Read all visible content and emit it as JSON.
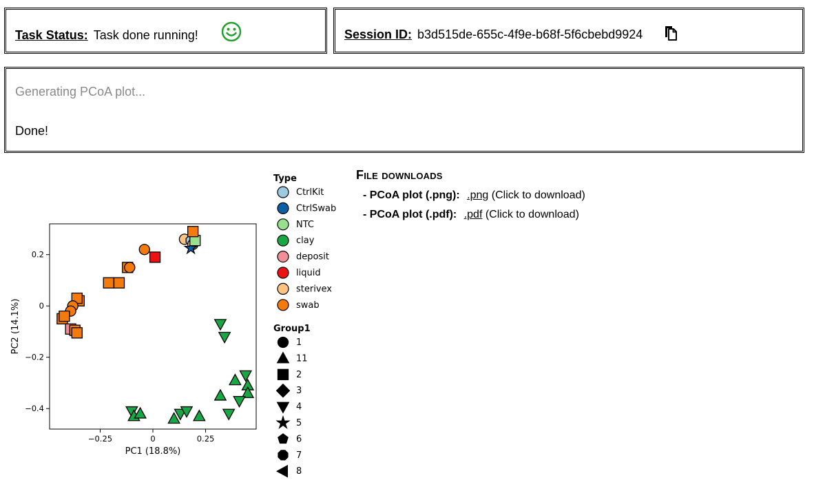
{
  "status": {
    "label": "Task Status:",
    "text": "Task done running!",
    "icon": "smiley-icon",
    "icon_color": "#22a22c"
  },
  "session": {
    "label": "Session ID:",
    "id": "b3d515de-655c-4f9e-b68f-5f6cbebd9924",
    "icon": "copy-icon"
  },
  "log": {
    "lines": [
      "Generating PCoA plot...",
      "Done!"
    ]
  },
  "downloads": {
    "title": "File downloads",
    "items": [
      {
        "label": "- PCoA plot (.png):",
        "link": ".png",
        "hint": "(Click to download)"
      },
      {
        "label": "- PCoA plot (.pdf):",
        "link": ".pdf",
        "hint": "(Click to download)"
      }
    ]
  },
  "chart_data": {
    "type": "scatter",
    "xlabel": "PC1 (18.8%)",
    "ylabel": "PC2 (14.1%)",
    "xlim": [
      -0.49,
      0.49
    ],
    "ylim": [
      -0.48,
      0.32
    ],
    "xticks": [
      -0.25,
      0,
      0.25
    ],
    "xtick_labels": [
      "−0.25",
      "0",
      "0.25"
    ],
    "yticks": [
      0.2,
      0,
      -0.2,
      -0.4
    ],
    "ytick_labels": [
      "0.2",
      "0",
      "−0.2",
      "−0.4"
    ],
    "grid": false,
    "legend_position": "right",
    "legend_type": {
      "title": "Type",
      "entries": [
        {
          "name": "CtrlKit",
          "color": "#9ecae1"
        },
        {
          "name": "CtrlSwab",
          "color": "#0b5fa5"
        },
        {
          "name": "NTC",
          "color": "#98e08e"
        },
        {
          "name": "clay",
          "color": "#17a845"
        },
        {
          "name": "deposit",
          "color": "#f08f98"
        },
        {
          "name": "liquid",
          "color": "#ee1111"
        },
        {
          "name": "sterivex",
          "color": "#fdc383"
        },
        {
          "name": "swab",
          "color": "#f57a0d"
        }
      ]
    },
    "legend_group": {
      "title": "Group1",
      "entries": [
        {
          "name": "1",
          "shape": "circle"
        },
        {
          "name": "11",
          "shape": "triangle-up"
        },
        {
          "name": "2",
          "shape": "square"
        },
        {
          "name": "3",
          "shape": "diamond"
        },
        {
          "name": "4",
          "shape": "triangle-down"
        },
        {
          "name": "5",
          "shape": "star"
        },
        {
          "name": "6",
          "shape": "pentagon"
        },
        {
          "name": "7",
          "shape": "octagon"
        },
        {
          "name": "8",
          "shape": "triangle-left"
        }
      ]
    },
    "points": [
      {
        "x": 0.15,
        "y": 0.26,
        "type": "sterivex",
        "shape": "circle"
      },
      {
        "x": 0.18,
        "y": 0.255,
        "type": "CtrlKit",
        "shape": "octagon"
      },
      {
        "x": 0.19,
        "y": 0.24,
        "type": "sterivex",
        "shape": "circle"
      },
      {
        "x": 0.18,
        "y": 0.225,
        "type": "CtrlSwab",
        "shape": "star"
      },
      {
        "x": 0.2,
        "y": 0.255,
        "type": "NTC",
        "shape": "square"
      },
      {
        "x": 0.19,
        "y": 0.29,
        "type": "swab",
        "shape": "square"
      },
      {
        "x": -0.04,
        "y": 0.22,
        "type": "swab",
        "shape": "circle"
      },
      {
        "x": 0.01,
        "y": 0.19,
        "type": "liquid",
        "shape": "square"
      },
      {
        "x": -0.12,
        "y": 0.15,
        "type": "swab",
        "shape": "square"
      },
      {
        "x": -0.11,
        "y": 0.15,
        "type": "swab",
        "shape": "circle"
      },
      {
        "x": -0.21,
        "y": 0.09,
        "type": "swab",
        "shape": "square"
      },
      {
        "x": -0.16,
        "y": 0.09,
        "type": "swab",
        "shape": "square"
      },
      {
        "x": -0.35,
        "y": 0.02,
        "type": "swab",
        "shape": "square"
      },
      {
        "x": -0.36,
        "y": 0.03,
        "type": "swab",
        "shape": "square"
      },
      {
        "x": -0.38,
        "y": 0.0,
        "type": "swab",
        "shape": "circle"
      },
      {
        "x": -0.39,
        "y": -0.02,
        "type": "swab",
        "shape": "circle"
      },
      {
        "x": -0.43,
        "y": -0.05,
        "type": "swab",
        "shape": "square"
      },
      {
        "x": -0.42,
        "y": -0.04,
        "type": "swab",
        "shape": "square"
      },
      {
        "x": -0.39,
        "y": -0.09,
        "type": "deposit",
        "shape": "square"
      },
      {
        "x": -0.37,
        "y": -0.095,
        "type": "swab",
        "shape": "square"
      },
      {
        "x": -0.36,
        "y": -0.105,
        "type": "swab",
        "shape": "square"
      },
      {
        "x": 0.32,
        "y": -0.07,
        "type": "clay",
        "shape": "triangle-down"
      },
      {
        "x": 0.34,
        "y": -0.12,
        "type": "clay",
        "shape": "triangle-down"
      },
      {
        "x": 0.44,
        "y": -0.27,
        "type": "clay",
        "shape": "triangle-down"
      },
      {
        "x": 0.39,
        "y": -0.29,
        "type": "clay",
        "shape": "triangle-up"
      },
      {
        "x": 0.45,
        "y": -0.31,
        "type": "clay",
        "shape": "triangle-up"
      },
      {
        "x": 0.45,
        "y": -0.34,
        "type": "clay",
        "shape": "triangle-up"
      },
      {
        "x": 0.32,
        "y": -0.35,
        "type": "clay",
        "shape": "triangle-up"
      },
      {
        "x": 0.41,
        "y": -0.37,
        "type": "clay",
        "shape": "triangle-down"
      },
      {
        "x": 0.36,
        "y": -0.42,
        "type": "clay",
        "shape": "triangle-down"
      },
      {
        "x": -0.1,
        "y": -0.41,
        "type": "clay",
        "shape": "triangle-down"
      },
      {
        "x": -0.09,
        "y": -0.43,
        "type": "clay",
        "shape": "triangle-up"
      },
      {
        "x": -0.06,
        "y": -0.42,
        "type": "clay",
        "shape": "triangle-up"
      },
      {
        "x": 0.1,
        "y": -0.44,
        "type": "clay",
        "shape": "triangle-up"
      },
      {
        "x": 0.13,
        "y": -0.42,
        "type": "clay",
        "shape": "triangle-down"
      },
      {
        "x": 0.16,
        "y": -0.41,
        "type": "clay",
        "shape": "triangle-down"
      },
      {
        "x": 0.22,
        "y": -0.43,
        "type": "clay",
        "shape": "triangle-up"
      }
    ]
  }
}
